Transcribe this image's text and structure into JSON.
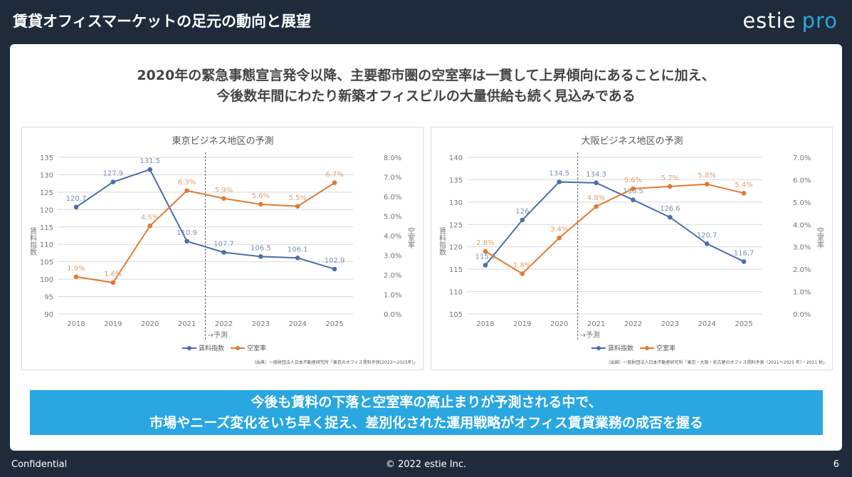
{
  "header": {
    "title": "賃貸オフィスマーケットの足元の動向と展望",
    "logo": "estie pro",
    "logo_main": "estie",
    "logo_sub": "pro"
  },
  "headline": [
    "2020年の緊急事態宣言発令以降、主要都市圏の空室率は一貫して上昇傾向にあることに加え、",
    "今後数年間にわたり新築オフィスビルの大量供給も続く見込みである"
  ],
  "banner": [
    "今後も賃料の下落と空室率の高止まりが予測される中で、",
    "市場やニーズ変化をいち早く捉え、差別化された運用戦略がオフィス賃貸業務の成否を握る"
  ],
  "footer": {
    "left": "Confidential",
    "center": "© 2022 estie Inc.",
    "page": "6"
  },
  "colors": {
    "header_bg": "#1f2b3b",
    "accent": "#29a7e1",
    "rent": "#4a6fab",
    "vacancy": "#e07b33"
  },
  "chart_data": [
    {
      "type": "line",
      "title": "東京ビジネス地区の予測",
      "categories": [
        "2018",
        "2019",
        "2020",
        "2021",
        "2022",
        "2023",
        "2024",
        "2025"
      ],
      "forecast_label": "→予測",
      "forecast_after": "2021",
      "ylabel": "賃料指数",
      "y2label": "空室率",
      "ylim": [
        90,
        135
      ],
      "yticks": [
        90,
        95,
        100,
        105,
        110,
        115,
        120,
        125,
        130,
        135
      ],
      "y2lim": [
        0,
        8
      ],
      "y2ticks": [
        "0.0%",
        "1.0%",
        "2.0%",
        "3.0%",
        "4.0%",
        "5.0%",
        "6.0%",
        "7.0%",
        "8.0%"
      ],
      "grid": true,
      "legend": "bottom",
      "series": [
        {
          "name": "賃料指数",
          "axis": "left",
          "values": [
            120.7,
            127.9,
            131.5,
            110.9,
            107.7,
            106.5,
            106.1,
            102.9
          ],
          "labels": [
            "120.7",
            "127.9",
            "131.5",
            "110.9",
            "107.7",
            "106.5",
            "106.1",
            "102.9"
          ]
        },
        {
          "name": "空室率",
          "axis": "right",
          "values": [
            1.9,
            1.6,
            4.5,
            6.3,
            5.9,
            5.6,
            5.5,
            6.7
          ],
          "labels": [
            "1.9%",
            "1.6%",
            "4.5%",
            "6.3%",
            "5.9%",
            "5.6%",
            "5.5%",
            "6.7%"
          ]
        }
      ],
      "source": "（出典）一般財団法人日本不動産研究所「東京のオフィス賃料予測(2022～2025年)」"
    },
    {
      "type": "line",
      "title": "大阪ビジネス地区の予測",
      "categories": [
        "2018",
        "2019",
        "2020",
        "2021",
        "2022",
        "2023",
        "2024",
        "2025"
      ],
      "forecast_label": "→予測",
      "forecast_after": "2020",
      "ylabel": "賃料指数",
      "y2label": "空室率",
      "ylim": [
        105,
        140
      ],
      "yticks": [
        105,
        110,
        115,
        120,
        125,
        130,
        135,
        140
      ],
      "y2lim": [
        0,
        7
      ],
      "y2ticks": [
        "0.0%",
        "1.0%",
        "2.0%",
        "3.0%",
        "4.0%",
        "5.0%",
        "6.0%",
        "7.0%"
      ],
      "grid": true,
      "legend": "bottom",
      "series": [
        {
          "name": "賃料指数",
          "axis": "left",
          "values": [
            115.9,
            126,
            134.5,
            134.3,
            130.5,
            126.6,
            120.7,
            116.7
          ],
          "labels": [
            "115.9",
            "126",
            "134.5",
            "134.3",
            "130.5",
            "126.6",
            "120.7",
            "116.7"
          ]
        },
        {
          "name": "空室率",
          "axis": "right",
          "values": [
            2.8,
            1.8,
            3.4,
            4.8,
            5.6,
            5.7,
            5.8,
            5.4
          ],
          "labels": [
            "2.8%",
            "1.8%",
            "3.4%",
            "4.8%",
            "5.6%",
            "5.7%",
            "5.8%",
            "5.4%"
          ]
        }
      ],
      "source": "（出典）一般財団法人日本不動産研究所「東京・大阪・名古屋のオフィス賃料予測（2021～2025 年）・2021 秋」"
    }
  ]
}
